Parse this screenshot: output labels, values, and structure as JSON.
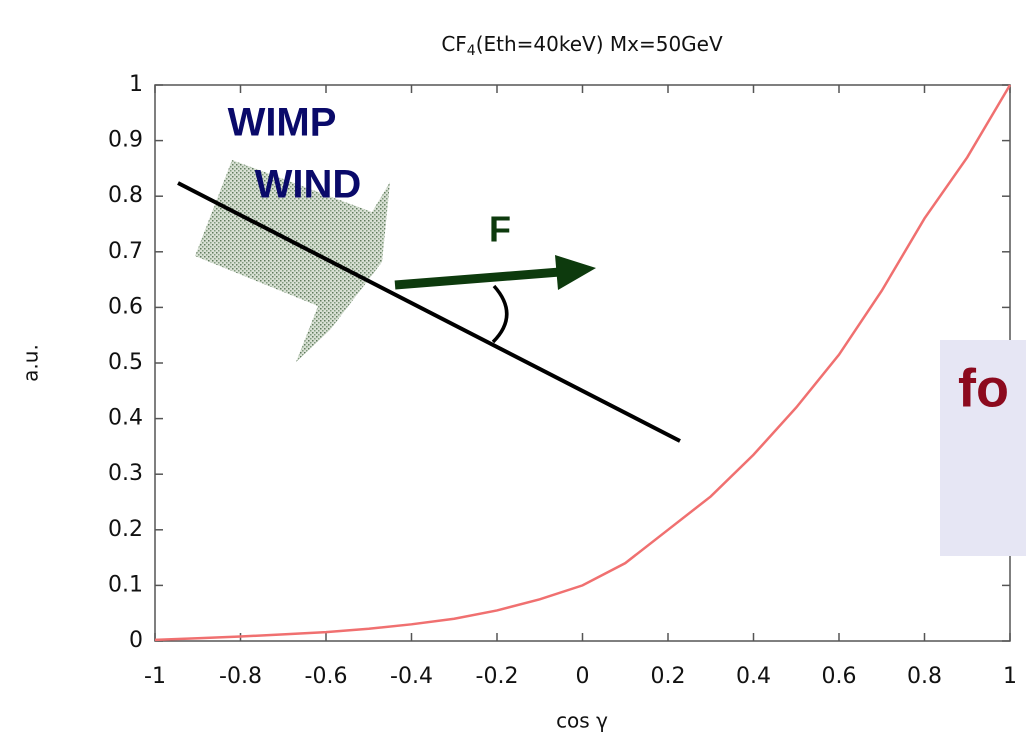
{
  "chart_data": {
    "type": "line",
    "title": [
      "CF",
      "4",
      "(Eth=40keV) Mx=50GeV"
    ],
    "xlabel": "cos γ",
    "ylabel": "a.u.",
    "x": [
      -1,
      -0.9,
      -0.8,
      -0.7,
      -0.6,
      -0.5,
      -0.4,
      -0.3,
      -0.2,
      -0.1,
      0,
      0.1,
      0.2,
      0.3,
      0.4,
      0.5,
      0.6,
      0.7,
      0.8,
      0.9,
      1
    ],
    "series": [
      {
        "color": "#f07070",
        "values": [
          0.002,
          0.005,
          0.008,
          0.012,
          0.016,
          0.022,
          0.03,
          0.04,
          0.055,
          0.075,
          0.1,
          0.14,
          0.2,
          0.26,
          0.335,
          0.42,
          0.515,
          0.63,
          0.76,
          0.87,
          1.0
        ]
      }
    ],
    "xlim": [
      -1,
      1
    ],
    "ylim": [
      0,
      1
    ],
    "xticks": [
      -1,
      -0.8,
      -0.6,
      -0.4,
      -0.2,
      0,
      0.2,
      0.4,
      0.6,
      0.8,
      1
    ],
    "yticks": [
      0,
      0.1,
      0.2,
      0.3,
      0.4,
      0.5,
      0.6,
      0.7,
      0.8,
      0.9,
      1
    ],
    "annotations": [
      "WIMP",
      "WIND",
      "F",
      "fo"
    ]
  }
}
